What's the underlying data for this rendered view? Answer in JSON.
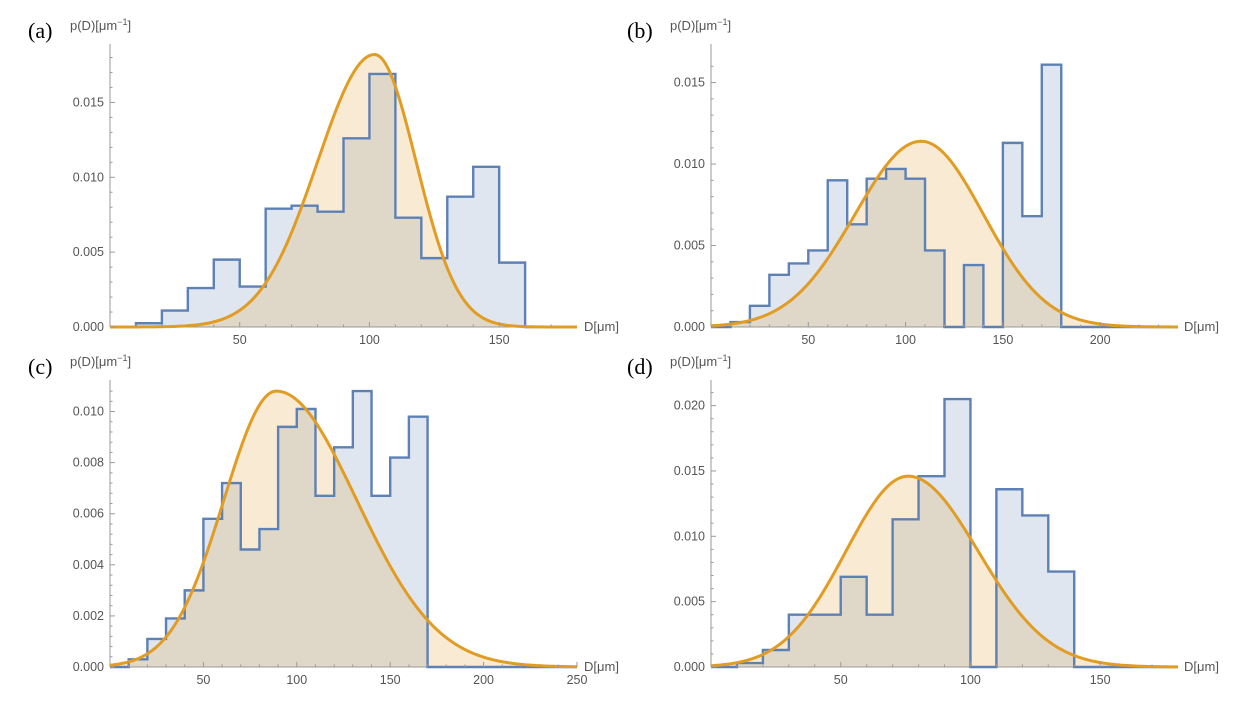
{
  "chart_data": [
    {
      "type": "histogram",
      "panel_label": "(a)",
      "ylabel": "p(D)[μm",
      "ylabel_sup": "−1",
      "ylabel_end": "]",
      "xlabel": "D[μm]",
      "xlim": [
        0,
        180
      ],
      "ylim": [
        0,
        0.0185
      ],
      "xticks": [
        50,
        100,
        150
      ],
      "yticks": [
        0.0,
        0.005,
        0.01,
        0.015
      ],
      "ytick_labels": [
        "0.000",
        "0.005",
        "0.010",
        "0.015"
      ],
      "histogram": {
        "bin_edges": [
          10,
          20,
          30,
          40,
          50,
          60,
          70,
          80,
          90,
          100,
          110,
          120,
          130,
          140,
          150,
          160
        ],
        "values": [
          0.00025,
          0.0011,
          0.0026,
          0.0045,
          0.0027,
          0.0079,
          0.0081,
          0.0077,
          0.0126,
          0.0169,
          0.0073,
          0.0046,
          0.0087,
          0.0107,
          0.0043
        ]
      },
      "fit_curve": {
        "peak_x": 102,
        "peak_y": 0.0182,
        "sigma_left": 22,
        "sigma_right": 16
      }
    },
    {
      "type": "histogram",
      "panel_label": "(b)",
      "ylabel": "p(D)[μm",
      "ylabel_sup": "−1",
      "ylabel_end": "]",
      "xlabel": "D[μm]",
      "xlim": [
        0,
        240
      ],
      "ylim": [
        0,
        0.017
      ],
      "xticks": [
        50,
        100,
        150,
        200
      ],
      "yticks": [
        0.0,
        0.005,
        0.01,
        0.015
      ],
      "ytick_labels": [
        "0.000",
        "0.005",
        "0.010",
        "0.015"
      ],
      "histogram": {
        "bin_edges": [
          10,
          20,
          30,
          40,
          50,
          60,
          70,
          80,
          90,
          100,
          110,
          120,
          130,
          140,
          150,
          160,
          170,
          180
        ],
        "values": [
          0.0003,
          0.0013,
          0.0032,
          0.0039,
          0.0047,
          0.009,
          0.0063,
          0.0091,
          0.0097,
          0.0091,
          0.0047,
          0.0,
          0.0038,
          0.0,
          0.0113,
          0.0068,
          0.0161
        ]
      },
      "fit_curve": {
        "peak_x": 108,
        "peak_y": 0.0114,
        "sigma_left": 34,
        "sigma_right": 32
      }
    },
    {
      "type": "histogram",
      "panel_label": "(c)",
      "ylabel": "p(D)[μm",
      "ylabel_sup": "−1",
      "ylabel_end": "]",
      "xlabel": "D[μm]",
      "xlim": [
        0,
        250
      ],
      "ylim": [
        0,
        0.011
      ],
      "xticks": [
        50,
        100,
        150,
        200,
        250
      ],
      "yticks": [
        0.0,
        0.002,
        0.004,
        0.006,
        0.008,
        0.01
      ],
      "ytick_labels": [
        "0.000",
        "0.002",
        "0.004",
        "0.006",
        "0.008",
        "0.010"
      ],
      "histogram": {
        "bin_edges": [
          10,
          20,
          30,
          40,
          50,
          60,
          70,
          80,
          90,
          100,
          110,
          120,
          130,
          140,
          150,
          160,
          170
        ],
        "values": [
          0.0003,
          0.0011,
          0.0019,
          0.003,
          0.0058,
          0.0072,
          0.0046,
          0.0054,
          0.0094,
          0.0101,
          0.0067,
          0.0086,
          0.0108,
          0.0067,
          0.0082,
          0.0098
        ]
      },
      "fit_curve": {
        "peak_x": 89,
        "peak_y": 0.0108,
        "sigma_left": 28,
        "sigma_right": 43
      }
    },
    {
      "type": "histogram",
      "panel_label": "(d)",
      "ylabel": "p(D)[μm",
      "ylabel_sup": "−1",
      "ylabel_end": "]",
      "xlabel": "D[μm]",
      "xlim": [
        0,
        180
      ],
      "ylim": [
        0,
        0.0215
      ],
      "xticks": [
        50,
        100,
        150
      ],
      "yticks": [
        0.0,
        0.005,
        0.01,
        0.015,
        0.02
      ],
      "ytick_labels": [
        "0.000",
        "0.005",
        "0.010",
        "0.015",
        "0.020"
      ],
      "histogram": {
        "bin_edges": [
          10,
          20,
          30,
          40,
          50,
          60,
          70,
          80,
          90,
          100,
          110,
          120,
          130,
          140
        ],
        "values": [
          0.0003,
          0.0013,
          0.004,
          0.004,
          0.0069,
          0.004,
          0.0113,
          0.0146,
          0.0205,
          0.0,
          0.0136,
          0.0116,
          0.0073
        ]
      },
      "fit_curve": {
        "peak_x": 76,
        "peak_y": 0.0146,
        "sigma_left": 24,
        "sigma_right": 27
      }
    }
  ]
}
